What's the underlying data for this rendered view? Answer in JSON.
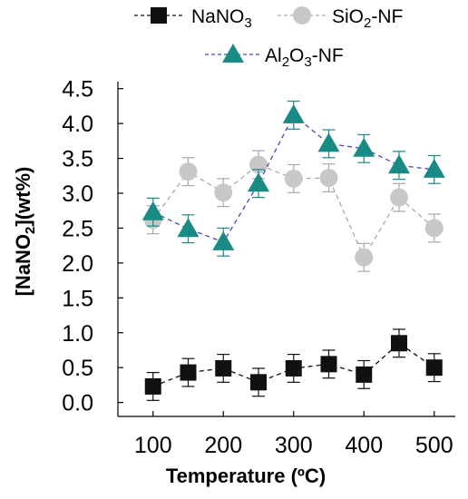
{
  "chart_data": {
    "type": "line",
    "x": [
      100,
      150,
      200,
      250,
      300,
      350,
      400,
      450,
      500
    ],
    "xlabel": "Temperature (ºC)",
    "ylabel_main": "[NaNO",
    "ylabel_sub": "2",
    "ylabel_tail": "](wt%)",
    "xlim": [
      50,
      530
    ],
    "ylim": [
      -0.2,
      4.6
    ],
    "xticks": [
      100,
      200,
      300,
      400,
      500
    ],
    "xtick_labels": [
      "100",
      "200",
      "300",
      "400",
      "500"
    ],
    "yticks": [
      0.0,
      0.5,
      1.0,
      1.5,
      2.0,
      2.5,
      3.0,
      3.5,
      4.0,
      4.5
    ],
    "ytick_labels": [
      "0.0",
      "0.5",
      "1.0",
      "1.5",
      "2.0",
      "2.5",
      "3.0",
      "3.5",
      "4.0",
      "4.5"
    ],
    "grid": false,
    "legend_position": "top",
    "series": [
      {
        "key": "nano3",
        "name_main": "NaNO",
        "name_sub": "3",
        "name_tail": "",
        "marker": "square",
        "color": "#111111",
        "line_color": "#111111",
        "error_color": "#111111",
        "values": [
          0.23,
          0.43,
          0.49,
          0.29,
          0.49,
          0.55,
          0.4,
          0.85,
          0.5
        ],
        "errors": [
          0.2,
          0.2,
          0.2,
          0.2,
          0.2,
          0.2,
          0.2,
          0.2,
          0.2
        ]
      },
      {
        "key": "sio2",
        "name_main": "SiO",
        "name_sub": "2",
        "name_tail": "-NF",
        "marker": "circle",
        "color": "#c8c8c8",
        "line_color": "#a8a8a8",
        "error_color": "#a8a8a8",
        "values": [
          2.62,
          3.31,
          3.01,
          3.41,
          3.21,
          3.22,
          2.08,
          2.94,
          2.5
        ],
        "errors": [
          0.2,
          0.2,
          0.2,
          0.2,
          0.2,
          0.2,
          0.2,
          0.2,
          0.2
        ]
      },
      {
        "key": "al2o3",
        "name_main": "Al",
        "name_sub": "2",
        "name_tail": "O",
        "name_sub2": "3",
        "name_tail2": "-NF",
        "marker": "triangle",
        "color": "#1a8a84",
        "line_color": "#4545c8",
        "error_color": "#1a8a84",
        "values": [
          2.73,
          2.49,
          2.3,
          3.14,
          4.12,
          3.71,
          3.64,
          3.4,
          3.34
        ],
        "errors": [
          0.2,
          0.2,
          0.2,
          0.2,
          0.2,
          0.2,
          0.2,
          0.2,
          0.2
        ]
      }
    ]
  }
}
